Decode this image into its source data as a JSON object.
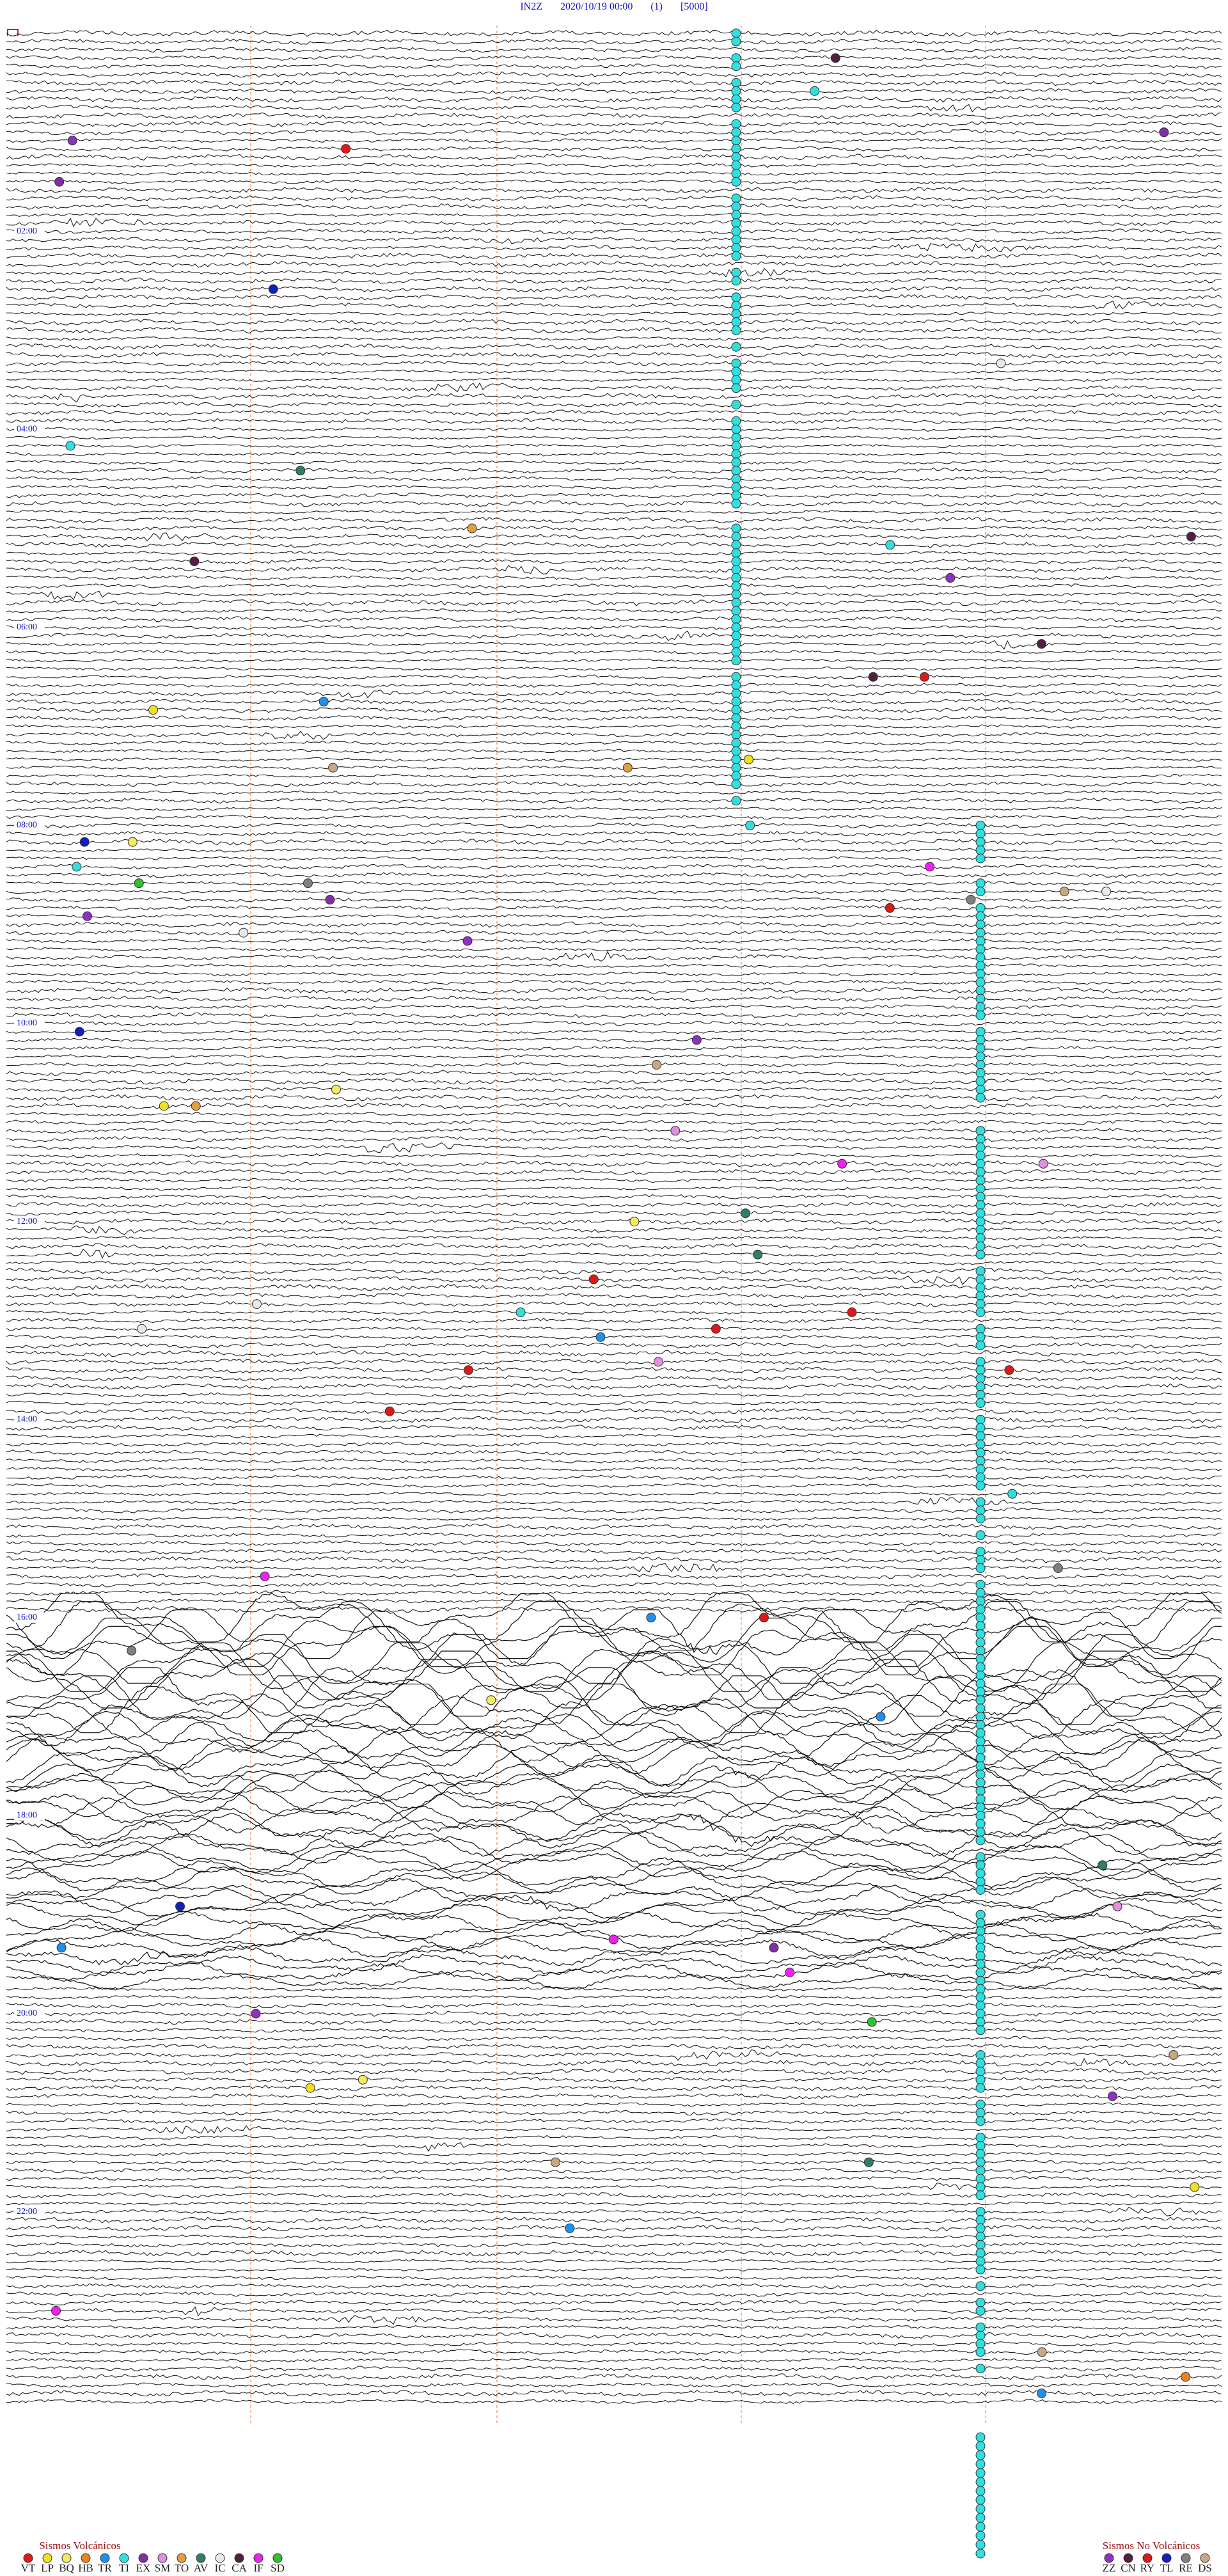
{
  "header": {
    "station": "IN2Z",
    "datetime": "2020/10/19 00:00",
    "channel": "(1)",
    "scale": "[5000]"
  },
  "time_labels": [
    "02:00",
    "04:00",
    "06:00",
    "08:00",
    "10:00",
    "12:00",
    "14:00",
    "16:00",
    "18:00",
    "20:00",
    "22:00"
  ],
  "legend_volcanic": {
    "title": "Sismos Volcánicos",
    "items": [
      {
        "code": "VT",
        "color": "#e01818"
      },
      {
        "code": "LP",
        "color": "#f0e020"
      },
      {
        "code": "BQ",
        "color": "#f4ec60"
      },
      {
        "code": "HB",
        "color": "#f08020"
      },
      {
        "code": "TR",
        "color": "#2090f0"
      },
      {
        "code": "TI",
        "color": "#30e0e0"
      },
      {
        "code": "EX",
        "color": "#8030a0"
      },
      {
        "code": "SM",
        "color": "#e090e0"
      },
      {
        "code": "TO",
        "color": "#e0a040"
      },
      {
        "code": "AV",
        "color": "#308060"
      },
      {
        "code": "IC",
        "color": "#e8e8e8"
      },
      {
        "code": "CA",
        "color": "#502040"
      },
      {
        "code": "IF",
        "color": "#f020f0"
      },
      {
        "code": "SD",
        "color": "#30c030"
      }
    ]
  },
  "legend_non_volcanic": {
    "title": "Sismos No Volcánicos",
    "items": [
      {
        "code": "ZZ",
        "color": "#9030c0"
      },
      {
        "code": "CN",
        "color": "#502040"
      },
      {
        "code": "RY",
        "color": "#e01818"
      },
      {
        "code": "TL",
        "color": "#1020c0"
      },
      {
        "code": "RE",
        "color": "#808080"
      },
      {
        "code": "DS",
        "color": "#c8a880"
      }
    ]
  }
}
